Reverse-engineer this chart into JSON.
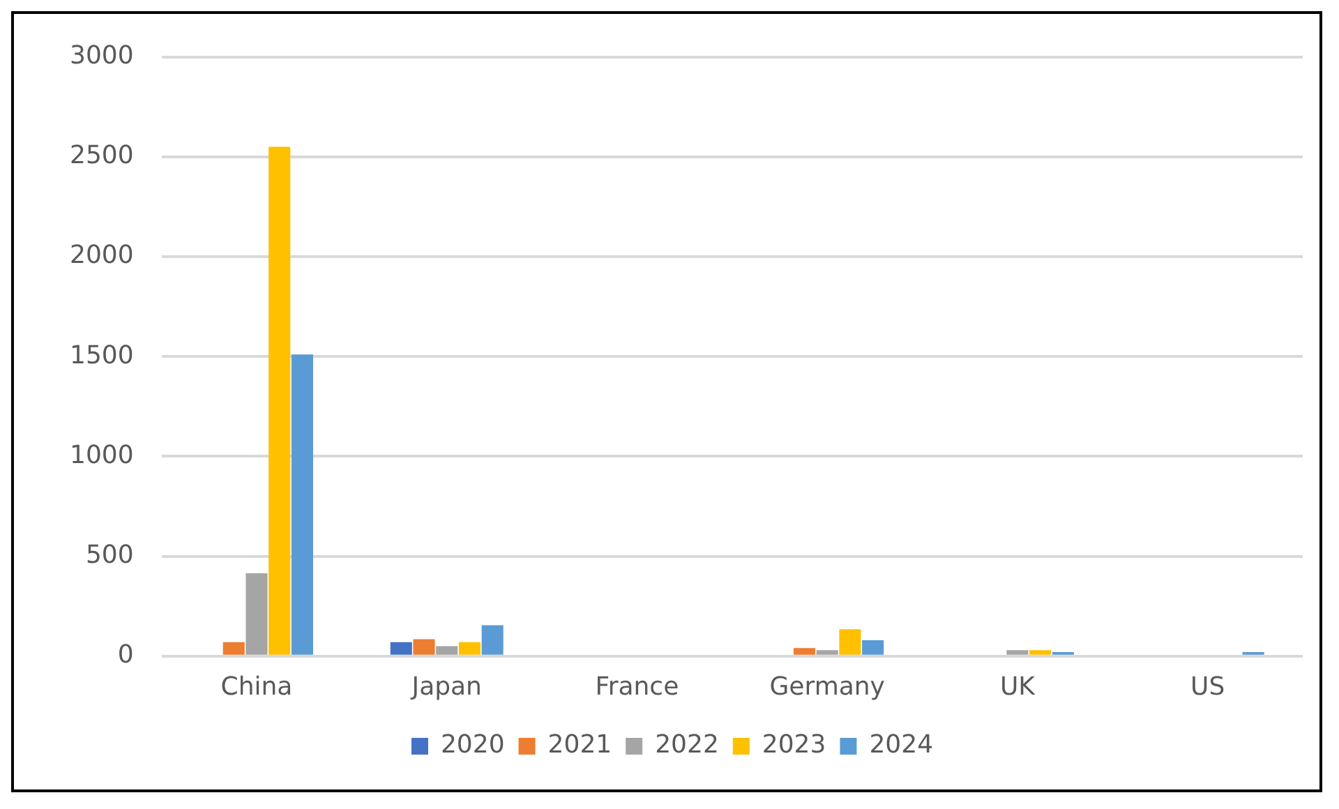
{
  "chart_data": {
    "type": "bar",
    "categories": [
      "China",
      "Japan",
      "France",
      "Germany",
      "UK",
      "US"
    ],
    "series": [
      {
        "name": "2020",
        "color": "#4472c4",
        "values": [
          null,
          70,
          null,
          null,
          null,
          null
        ]
      },
      {
        "name": "2021",
        "color": "#ed7d31",
        "values": [
          70,
          85,
          null,
          40,
          null,
          null
        ]
      },
      {
        "name": "2022",
        "color": "#a5a5a5",
        "values": [
          415,
          50,
          null,
          30,
          30,
          null
        ]
      },
      {
        "name": "2023",
        "color": "#ffc000",
        "values": [
          2550,
          70,
          null,
          135,
          30,
          null
        ]
      },
      {
        "name": "2024",
        "color": "#5b9bd5",
        "values": [
          1510,
          155,
          null,
          80,
          20,
          20
        ]
      }
    ],
    "ylim": [
      0,
      3000
    ],
    "yticks": [
      0,
      500,
      1000,
      1500,
      2000,
      2500,
      3000
    ],
    "grid": "y",
    "legend": "bottom"
  }
}
